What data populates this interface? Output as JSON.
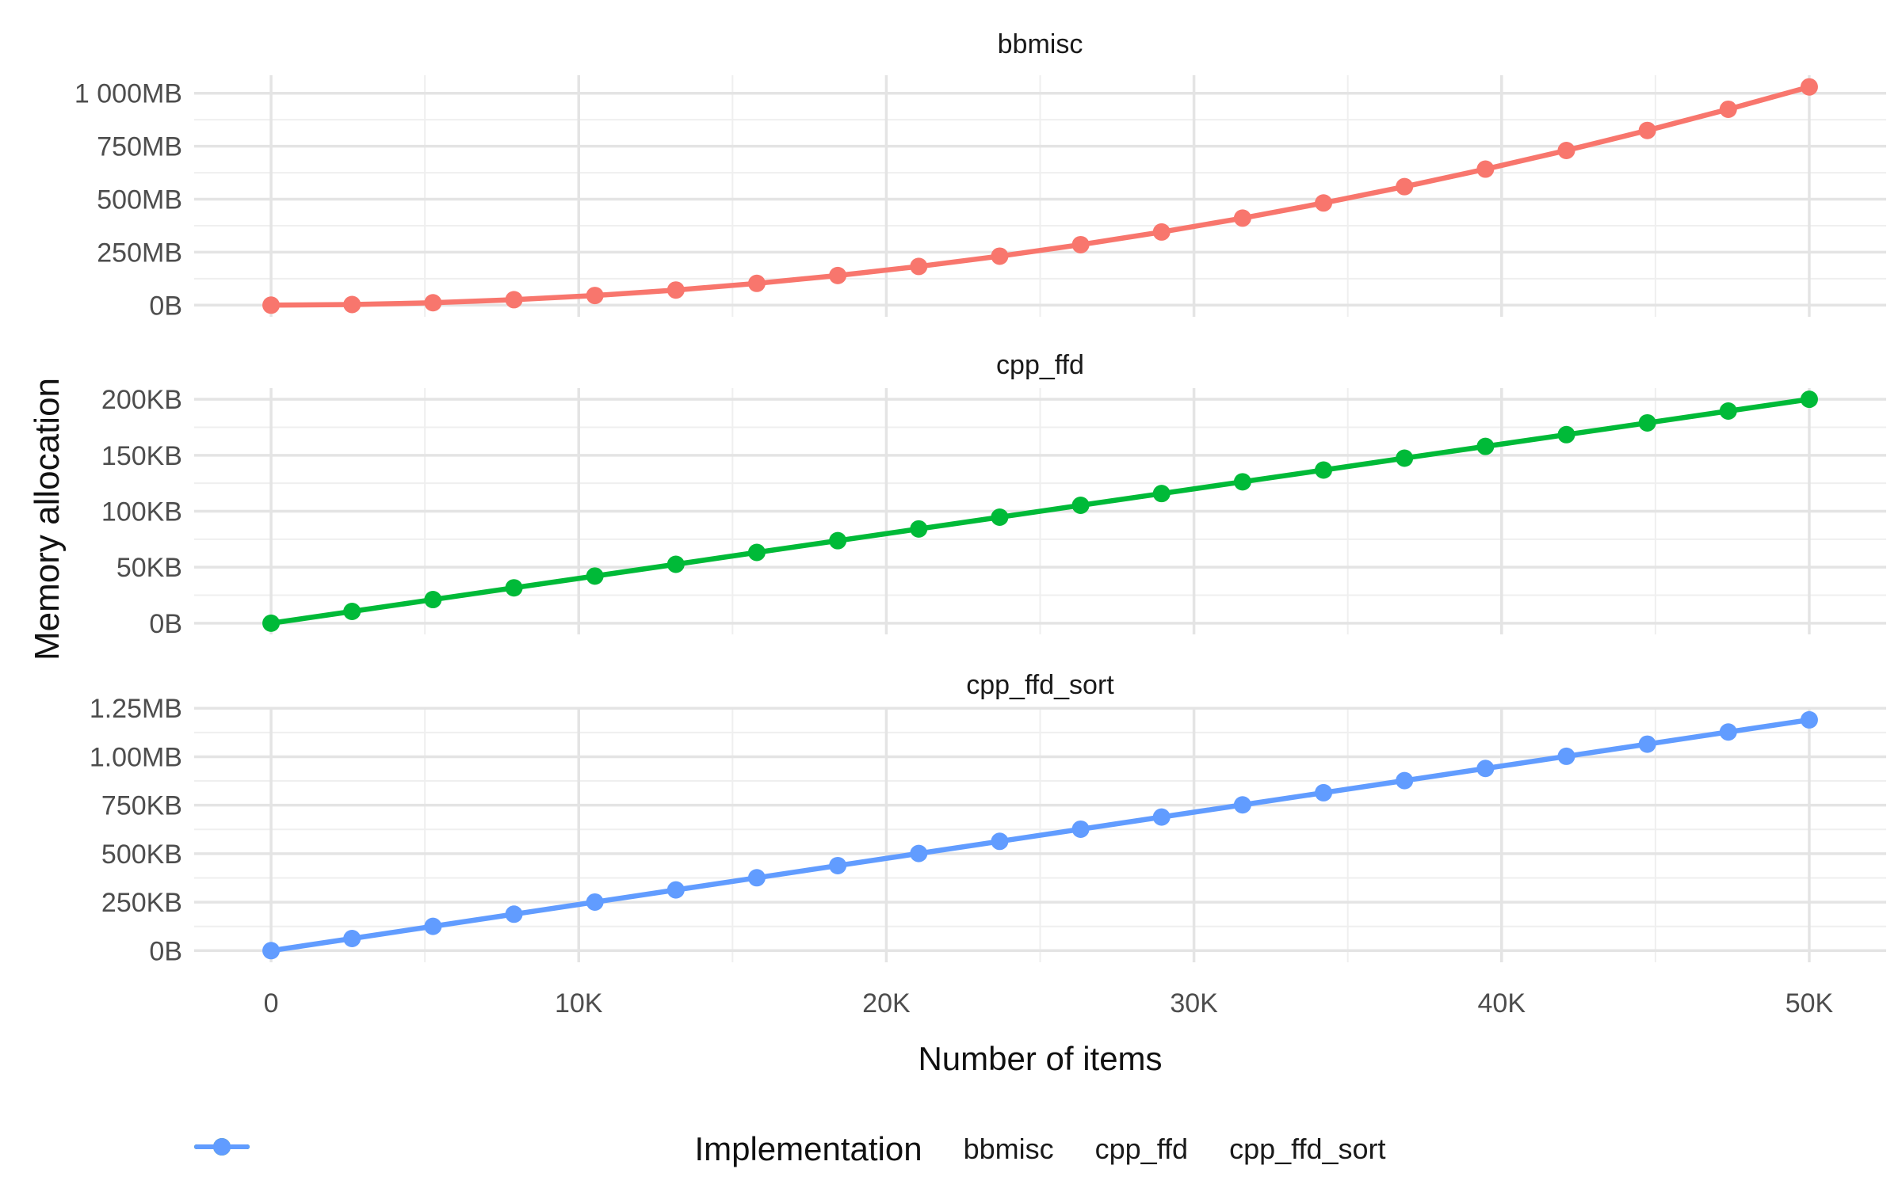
{
  "figure": {
    "y_axis_title": "Memory allocation",
    "x_axis_title": "Number of items",
    "background_color": "#FFFFFF",
    "grid": true,
    "grid_major_color": "#E4E4E4",
    "grid_minor_color": "#EFEFEF",
    "tick_label_color": "#4D4D4D",
    "title_color": "#1A1A1A",
    "facet_layout": "rows",
    "x_ticks": [
      "0",
      "10K",
      "20K",
      "30K",
      "40K",
      "50K"
    ],
    "x_tick_values": [
      0,
      10000,
      20000,
      30000,
      40000,
      50000
    ],
    "x_minor_values": [
      5000,
      15000,
      25000,
      35000,
      45000
    ],
    "xlim": [
      -2500,
      52500
    ]
  },
  "legend": {
    "title": "Implementation",
    "position": "bottom",
    "items": [
      {
        "label": "bbmisc",
        "color": "#F8766D"
      },
      {
        "label": "cpp_ffd",
        "color": "#00BA38"
      },
      {
        "label": "cpp_ffd_sort",
        "color": "#619CFF"
      }
    ]
  },
  "chart_data": [
    {
      "type": "line",
      "facet": "bbmisc",
      "series_name": "bbmisc",
      "color": "#F8766D",
      "y_unit": "MB",
      "x": [
        0,
        2632,
        5263,
        7895,
        10526,
        13158,
        15789,
        18421,
        21053,
        23684,
        26316,
        28947,
        31579,
        34211,
        36842,
        39474,
        42105,
        44737,
        47368,
        50000
      ],
      "values": [
        0,
        2.9,
        11.4,
        25.7,
        45.6,
        71.3,
        102.7,
        139.8,
        182.6,
        231.1,
        285.3,
        345.2,
        410.7,
        482.2,
        559.2,
        641.9,
        730.0,
        824.5,
        924.4,
        1030.0
      ],
      "y_ticks": {
        "values": [
          0,
          250,
          500,
          750,
          1000
        ],
        "labels": [
          "0B",
          "250MB",
          "500MB",
          "750MB",
          "1 000MB"
        ]
      },
      "y_minor": [
        125,
        375,
        625,
        875
      ],
      "ylim": [
        -55,
        1085
      ]
    },
    {
      "type": "line",
      "facet": "cpp_ffd",
      "series_name": "cpp_ffd",
      "color": "#00BA38",
      "y_unit": "KB",
      "x": [
        0,
        2632,
        5263,
        7895,
        10526,
        13158,
        15789,
        18421,
        21053,
        23684,
        26316,
        28947,
        31579,
        34211,
        36842,
        39474,
        42105,
        44737,
        47368,
        50000
      ],
      "values": [
        0,
        10.5,
        21.1,
        31.6,
        42.1,
        52.6,
        63.2,
        73.7,
        84.2,
        94.7,
        105.3,
        115.8,
        126.3,
        136.8,
        147.4,
        157.9,
        168.4,
        178.9,
        189.5,
        200.0
      ],
      "y_ticks": {
        "values": [
          0,
          50,
          100,
          150,
          200
        ],
        "labels": [
          "0B",
          "50KB",
          "100KB",
          "150KB",
          "200KB"
        ]
      },
      "y_minor": [
        25,
        75,
        125,
        175
      ],
      "ylim": [
        -10,
        210
      ]
    },
    {
      "type": "line",
      "facet": "cpp_ffd_sort",
      "series_name": "cpp_ffd_sort",
      "color": "#619CFF",
      "y_unit": "KB",
      "x": [
        0,
        2632,
        5263,
        7895,
        10526,
        13158,
        15789,
        18421,
        21053,
        23684,
        26316,
        28947,
        31579,
        34211,
        36842,
        39474,
        42105,
        44737,
        47368,
        50000
      ],
      "values": [
        0,
        62.6,
        125.3,
        187.9,
        250.5,
        313.2,
        375.8,
        438.4,
        501.1,
        563.7,
        626.3,
        688.9,
        751.6,
        814.2,
        876.8,
        939.5,
        1002.1,
        1064.7,
        1127.4,
        1190.0
      ],
      "y_ticks": {
        "values": [
          0,
          250,
          500,
          750,
          1000,
          1250
        ],
        "labels": [
          "0B",
          "250KB",
          "500KB",
          "750KB",
          "1.00MB",
          "1.25MB"
        ]
      },
      "y_minor": [
        125,
        375,
        625,
        875,
        1125
      ],
      "ylim": [
        -60,
        1255
      ]
    }
  ]
}
